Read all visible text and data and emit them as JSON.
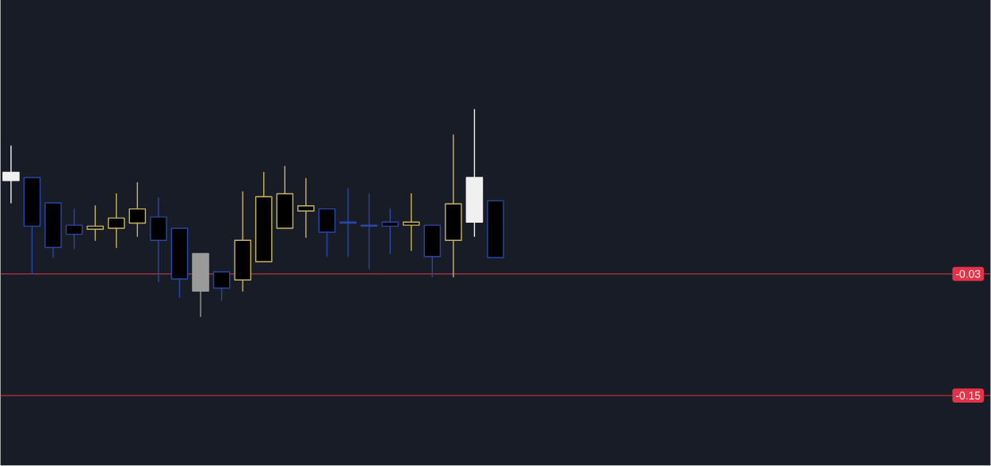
{
  "chart_data": {
    "type": "candlestick",
    "categories": [
      null,
      null,
      null,
      null,
      null,
      null,
      null,
      null,
      null,
      null,
      null,
      null,
      null,
      null,
      null,
      null,
      null,
      null,
      null,
      null,
      null,
      null,
      null,
      null,
      null,
      null,
      null,
      null,
      null,
      null,
      null,
      null,
      null,
      null,
      null,
      null,
      null,
      null,
      null,
      null,
      null,
      null,
      null,
      null,
      null,
      null,
      null
    ],
    "ohlc": [
      [
        0.062,
        0.096,
        0.04,
        0.07
      ],
      [
        0.065,
        0.065,
        -0.03,
        0.017
      ],
      [
        0.04,
        0.04,
        -0.014,
        -0.004
      ],
      [
        0.018,
        0.034,
        -0.005,
        0.009
      ],
      [
        0.014,
        0.037,
        0.003,
        0.017
      ],
      [
        0.015,
        0.049,
        -0.004,
        0.025
      ],
      [
        0.02,
        0.06,
        0.007,
        0.034
      ],
      [
        0.026,
        0.045,
        -0.038,
        0.003
      ],
      [
        0.015,
        0.015,
        -0.053,
        -0.035
      ],
      [
        -0.01,
        -0.01,
        -0.072,
        -0.047
      ],
      [
        -0.028,
        -0.028,
        -0.056,
        -0.044
      ],
      [
        -0.036,
        0.051,
        -0.047,
        0.003
      ],
      [
        -0.018,
        0.07,
        -0.018,
        0.046
      ],
      [
        0.015,
        0.076,
        0.015,
        0.049
      ],
      [
        0.032,
        0.064,
        0.006,
        0.037
      ],
      [
        0.034,
        0.034,
        -0.013,
        0.011
      ],
      [
        0.021,
        0.054,
        -0.013,
        0.02
      ],
      [
        0.018,
        0.049,
        -0.025,
        0.017
      ],
      [
        0.021,
        0.034,
        -0.01,
        0.017
      ],
      [
        0.018,
        0.049,
        -0.007,
        0.021
      ],
      [
        0.018,
        0.018,
        -0.033,
        -0.013
      ],
      [
        0.003,
        0.107,
        -0.033,
        0.039
      ],
      [
        0.021,
        0.132,
        0.007,
        0.065
      ],
      [
        0.042,
        0.042,
        -0.014,
        -0.014
      ],
      null,
      null,
      null,
      null,
      null,
      null,
      null,
      null,
      null,
      null,
      null,
      null,
      null,
      null,
      null,
      null,
      null,
      null,
      null,
      null,
      null,
      null,
      null
    ],
    "colors": [
      "#f0f0f0",
      "#2a47a8",
      "#2a47a8",
      "#2a47a8",
      "#c8b560",
      "#c8b560",
      "#c8b560",
      "#2a47a8",
      "#2a47a8",
      "#9a9a9a",
      "#2a47a8",
      "#c8b560",
      "#c8b560",
      "#c8b560",
      "#c8b560",
      "#2a47a8",
      "#2a47a8",
      "#2a47a8",
      "#2a47a8",
      "#c8b560",
      "#2a47a8",
      "#c8b560",
      "#f0f0f0",
      "#2a47a8",
      null,
      null,
      null,
      null,
      null,
      null,
      null,
      null,
      null,
      null,
      null,
      null,
      null,
      null,
      null,
      null,
      null,
      null,
      null,
      null,
      null,
      null,
      null
    ],
    "ylim": [
      -0.219,
      0.24
    ],
    "yticks": [
      -0.15,
      -0.03
    ],
    "ref_lines": [
      {
        "axis": "y",
        "value": -0.03,
        "color": "#b03a48"
      },
      {
        "axis": "y",
        "value": -0.15,
        "color": "#c8283c"
      }
    ]
  }
}
